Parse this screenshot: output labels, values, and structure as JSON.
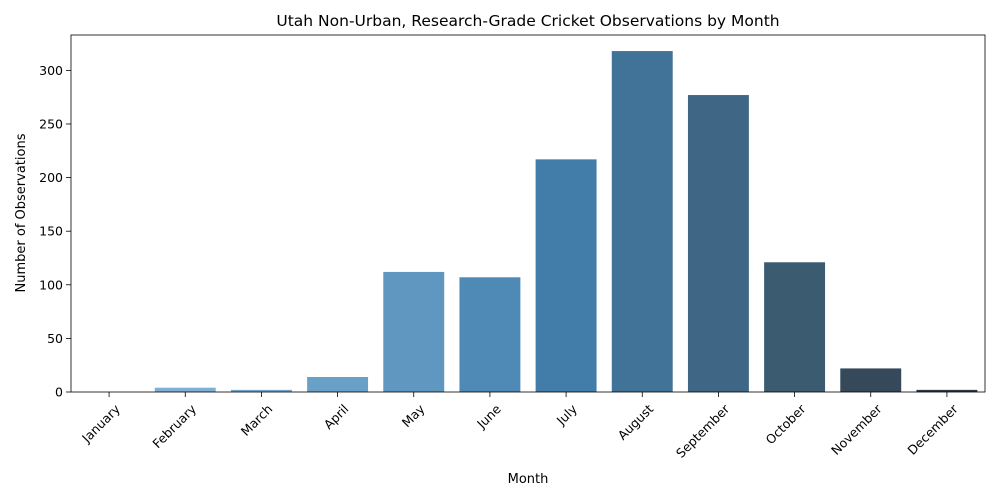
{
  "chart_data": {
    "type": "bar",
    "title": "Utah Non-Urban, Research-Grade Cricket Observations by Month",
    "xlabel": "Month",
    "ylabel": "Number of Observations",
    "categories": [
      "January",
      "February",
      "March",
      "April",
      "May",
      "June",
      "July",
      "August",
      "September",
      "October",
      "November",
      "December"
    ],
    "values": [
      0,
      4,
      2,
      14,
      112,
      107,
      217,
      318,
      277,
      121,
      22,
      2
    ],
    "ylim": [
      0,
      333
    ],
    "yticks": [
      "0",
      "50",
      "100",
      "150",
      "200",
      "250",
      "300"
    ],
    "grid": false,
    "legend": "none",
    "colors": [
      "#8ab6d6",
      "#7db0d4",
      "#70a8cf",
      "#68a0c8",
      "#5f97c0",
      "#4f89b6",
      "#427ca8",
      "#417297",
      "#3f6684",
      "#3b5b71",
      "#36495a",
      "#2f3a45"
    ]
  }
}
